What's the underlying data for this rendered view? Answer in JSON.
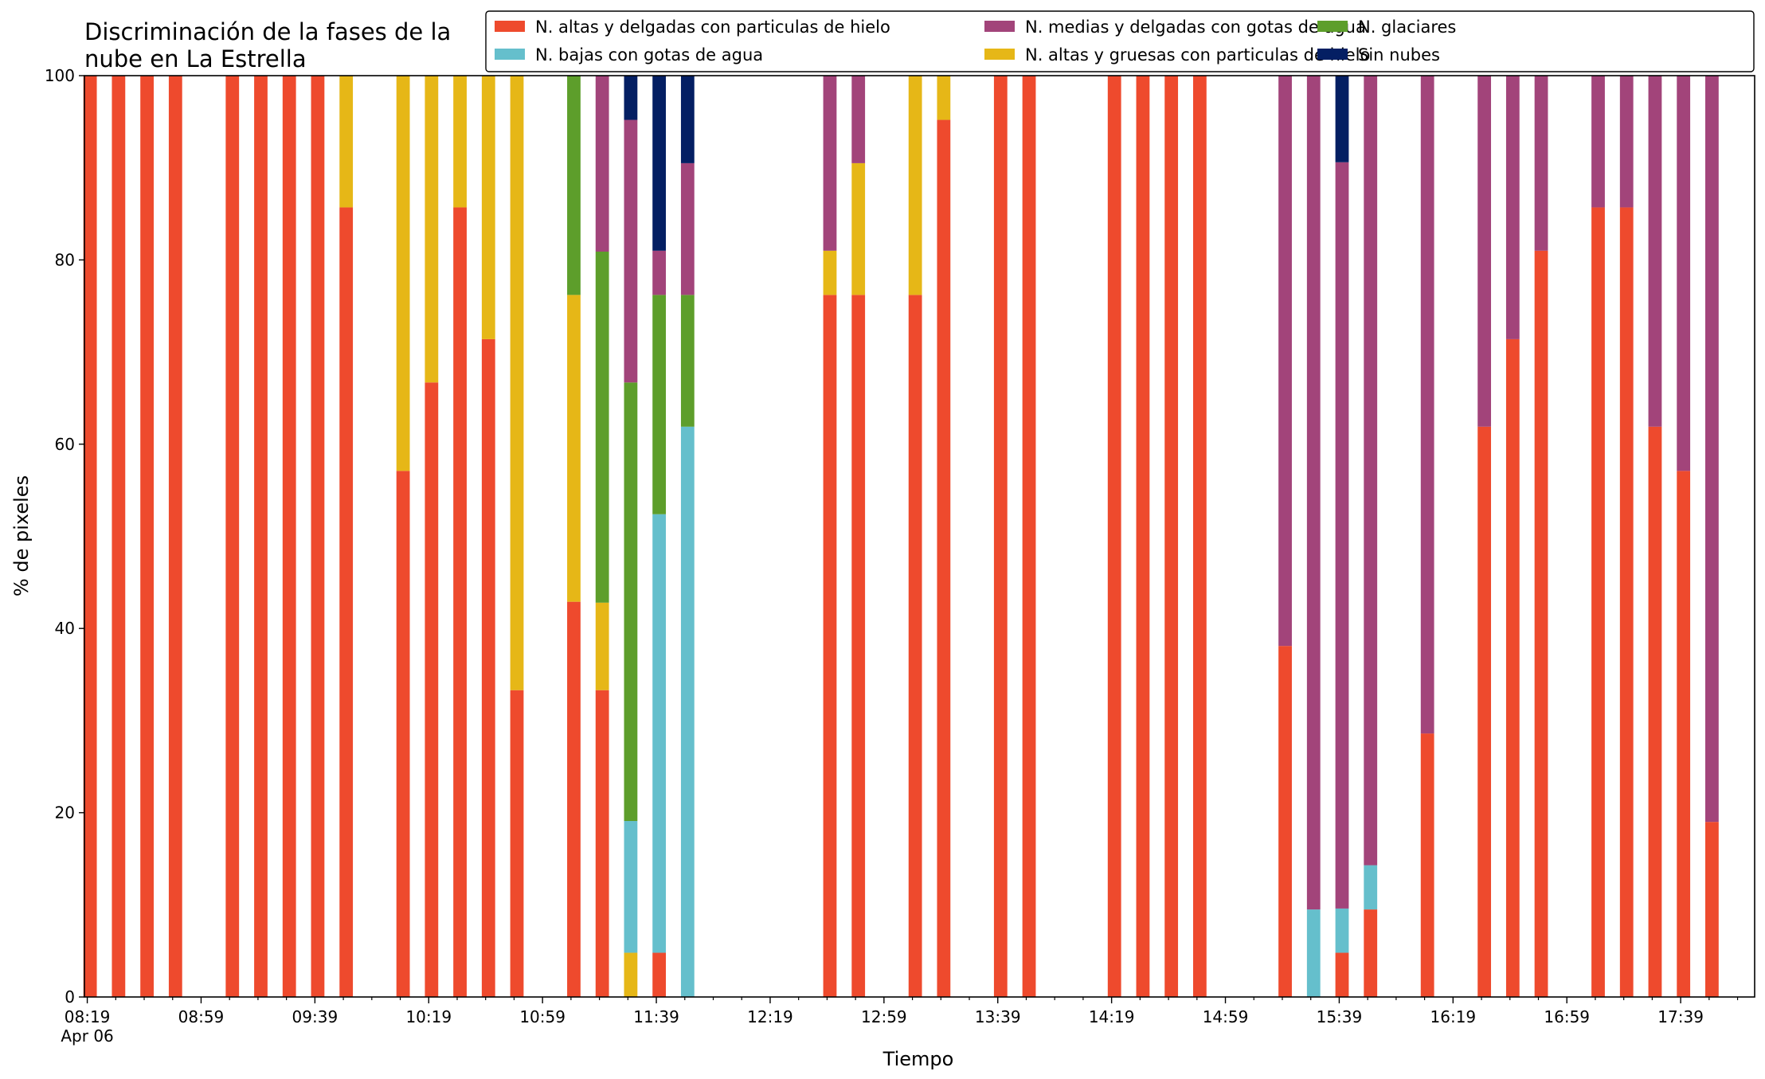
{
  "chart_data": {
    "type": "bar",
    "stacked": true,
    "title_lines": [
      "Discriminación de la fases de la",
      "nube en La Estrella"
    ],
    "xlabel": "Tiempo",
    "ylabel": "% de pixeles",
    "ylim": [
      0,
      100
    ],
    "y_ticks": [
      "0",
      "20",
      "40",
      "60",
      "80",
      "100"
    ],
    "x_ticks": [
      {
        "minute": 499,
        "label": "08:19",
        "sublabel": "Apr 06"
      },
      {
        "minute": 539,
        "label": "08:59"
      },
      {
        "minute": 579,
        "label": "09:39"
      },
      {
        "minute": 619,
        "label": "10:19"
      },
      {
        "minute": 659,
        "label": "10:59"
      },
      {
        "minute": 699,
        "label": "11:39"
      },
      {
        "minute": 739,
        "label": "12:19"
      },
      {
        "minute": 779,
        "label": "12:59"
      },
      {
        "minute": 819,
        "label": "13:39"
      },
      {
        "minute": 859,
        "label": "14:19"
      },
      {
        "minute": 899,
        "label": "14:59"
      },
      {
        "minute": 939,
        "label": "15:39"
      },
      {
        "minute": 979,
        "label": "16:19"
      },
      {
        "minute": 1019,
        "label": "16:59"
      },
      {
        "minute": 1059,
        "label": "17:39"
      }
    ],
    "x_range_minutes": [
      498,
      1085
    ],
    "bar_width_minutes": 4.7,
    "legend_placement": "upper-right",
    "series": [
      {
        "name": "N. altas y delgadas con particulas de hielo",
        "color": "#ee4a2d"
      },
      {
        "name": "N. altas y gruesas con particulas de hielo",
        "color": "#e6b717"
      },
      {
        "name": "N. bajas con gotas de agua",
        "color": "#65bfcc"
      },
      {
        "name": "N. glaciares",
        "color": "#5d9e2b"
      },
      {
        "name": "N. medias y delgadas con gotas de agua",
        "color": "#a2447a"
      },
      {
        "name": "Sin nubes",
        "color": "#041f63"
      }
    ],
    "legend_order": [
      0,
      2,
      4,
      1,
      3,
      5
    ],
    "bars": [
      {
        "minute": 500,
        "values": [
          100,
          0,
          0,
          0,
          0,
          0
        ]
      },
      {
        "minute": 510,
        "values": [
          100,
          0,
          0,
          0,
          0,
          0
        ]
      },
      {
        "minute": 520,
        "values": [
          100,
          0,
          0,
          0,
          0,
          0
        ]
      },
      {
        "minute": 530,
        "values": [
          100,
          0,
          0,
          0,
          0,
          0
        ]
      },
      {
        "minute": 550,
        "values": [
          100,
          0,
          0,
          0,
          0,
          0
        ]
      },
      {
        "minute": 560,
        "values": [
          100,
          0,
          0,
          0,
          0,
          0
        ]
      },
      {
        "minute": 570,
        "values": [
          100,
          0,
          0,
          0,
          0,
          0
        ]
      },
      {
        "minute": 580,
        "values": [
          100,
          0,
          0,
          0,
          0,
          0
        ]
      },
      {
        "minute": 590,
        "values": [
          85.7,
          14.3,
          0,
          0,
          0,
          0
        ]
      },
      {
        "minute": 610,
        "values": [
          57.1,
          42.9,
          0,
          0,
          0,
          0
        ]
      },
      {
        "minute": 620,
        "values": [
          66.7,
          33.3,
          0,
          0,
          0,
          0
        ]
      },
      {
        "minute": 630,
        "values": [
          85.7,
          14.3,
          0,
          0,
          0,
          0
        ]
      },
      {
        "minute": 640,
        "values": [
          71.4,
          28.6,
          0,
          0,
          0,
          0
        ]
      },
      {
        "minute": 650,
        "values": [
          33.3,
          66.7,
          0,
          0,
          0,
          0
        ]
      },
      {
        "minute": 670,
        "values": [
          42.9,
          33.3,
          0,
          23.8,
          0,
          0
        ]
      },
      {
        "minute": 680,
        "values": [
          33.3,
          9.5,
          0,
          38.1,
          19.1,
          0
        ]
      },
      {
        "minute": 690,
        "values": [
          0,
          4.8,
          14.3,
          47.6,
          28.5,
          4.8
        ]
      },
      {
        "minute": 700,
        "values": [
          4.8,
          0,
          47.6,
          23.8,
          4.8,
          19.0
        ]
      },
      {
        "minute": 710,
        "values": [
          0,
          0,
          61.9,
          14.3,
          14.3,
          9.5
        ]
      },
      {
        "minute": 760,
        "values": [
          76.2,
          4.8,
          0,
          0,
          19.0,
          0
        ]
      },
      {
        "minute": 770,
        "values": [
          76.2,
          14.3,
          0,
          0,
          9.5,
          0
        ]
      },
      {
        "minute": 790,
        "values": [
          76.2,
          23.8,
          0,
          0,
          0,
          0
        ]
      },
      {
        "minute": 800,
        "values": [
          95.2,
          4.8,
          0,
          0,
          0,
          0
        ]
      },
      {
        "minute": 820,
        "values": [
          100,
          0,
          0,
          0,
          0,
          0
        ]
      },
      {
        "minute": 830,
        "values": [
          100,
          0,
          0,
          0,
          0,
          0
        ]
      },
      {
        "minute": 860,
        "values": [
          100,
          0,
          0,
          0,
          0,
          0
        ]
      },
      {
        "minute": 870,
        "values": [
          100,
          0,
          0,
          0,
          0,
          0
        ]
      },
      {
        "minute": 880,
        "values": [
          100,
          0,
          0,
          0,
          0,
          0
        ]
      },
      {
        "minute": 890,
        "values": [
          100,
          0,
          0,
          0,
          0,
          0
        ]
      },
      {
        "minute": 920,
        "values": [
          38.1,
          0,
          0,
          0,
          61.9,
          0
        ]
      },
      {
        "minute": 930,
        "values": [
          0,
          0,
          9.5,
          0,
          90.5,
          0
        ]
      },
      {
        "minute": 940,
        "values": [
          4.8,
          0,
          4.8,
          0,
          81.0,
          9.4
        ]
      },
      {
        "minute": 950,
        "values": [
          9.5,
          0,
          4.8,
          0,
          85.7,
          0
        ]
      },
      {
        "minute": 970,
        "values": [
          28.6,
          0,
          0,
          0,
          71.4,
          0
        ]
      },
      {
        "minute": 990,
        "values": [
          61.9,
          0,
          0,
          0,
          38.1,
          0
        ]
      },
      {
        "minute": 1000,
        "values": [
          71.4,
          0,
          0,
          0,
          28.6,
          0
        ]
      },
      {
        "minute": 1010,
        "values": [
          81.0,
          0,
          0,
          0,
          19.0,
          0
        ]
      },
      {
        "minute": 1030,
        "values": [
          85.7,
          0,
          0,
          0,
          14.3,
          0
        ]
      },
      {
        "minute": 1040,
        "values": [
          85.7,
          0,
          0,
          0,
          14.3,
          0
        ]
      },
      {
        "minute": 1050,
        "values": [
          61.9,
          0,
          0,
          0,
          38.1,
          0
        ]
      },
      {
        "minute": 1060,
        "values": [
          57.1,
          0,
          0,
          0,
          42.9,
          0
        ]
      },
      {
        "minute": 1070,
        "values": [
          19.0,
          0,
          0,
          0,
          81.0,
          0
        ]
      }
    ]
  }
}
